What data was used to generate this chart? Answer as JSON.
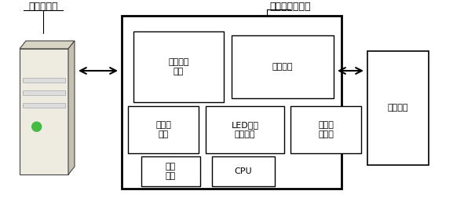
{
  "bg_color": "#ffffff",
  "title_server": "后台服务器",
  "title_monitor": "无线税源监测器",
  "title_terminal": "税源终端",
  "label_wireless": "无线通讯\n模块",
  "label_interface": "接口模块",
  "label_storage": "存储器\n模块",
  "label_led": "LED状态\n指示模块",
  "label_rtc": "实时时\n钟模块",
  "label_backup": "后备\n电源",
  "label_cpu": "CPU",
  "font_size_label": 8,
  "font_size_title": 9
}
